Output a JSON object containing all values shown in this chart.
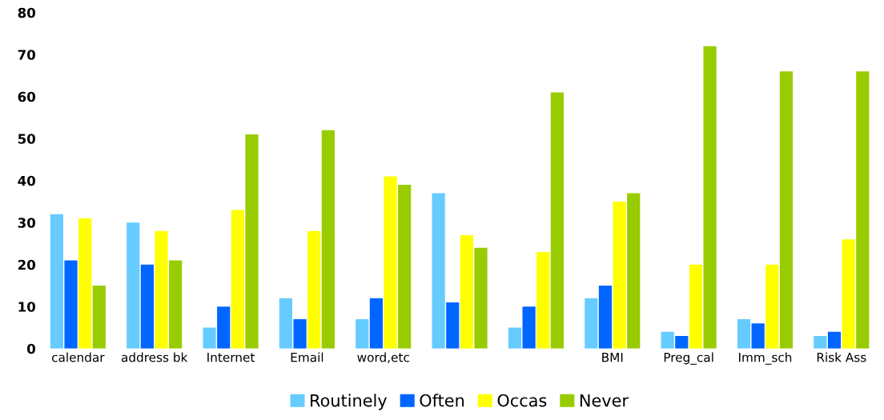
{
  "chart_data": {
    "type": "bar",
    "categories": [
      "calendar",
      "address bk",
      "Internet",
      "Email",
      "word,etc",
      null,
      null,
      "BMI",
      "Preg_cal",
      "Imm_sch",
      "Risk Ass"
    ],
    "series": [
      {
        "name": "Routinely",
        "color": "#66ccff",
        "values": [
          32,
          30,
          5,
          12,
          7,
          37,
          5,
          12,
          4,
          7,
          3
        ]
      },
      {
        "name": "Often",
        "color": "#0066ff",
        "values": [
          21,
          20,
          10,
          7,
          12,
          11,
          10,
          15,
          3,
          6,
          4
        ]
      },
      {
        "name": "Occas",
        "color": "#ffff00",
        "values": [
          31,
          28,
          33,
          28,
          41,
          27,
          23,
          35,
          20,
          20,
          26
        ]
      },
      {
        "name": "Never",
        "color": "#99cc00",
        "values": [
          15,
          21,
          51,
          52,
          39,
          24,
          61,
          37,
          72,
          66,
          66
        ]
      }
    ],
    "ylim": [
      0,
      80
    ],
    "yticks": [
      0,
      10,
      20,
      30,
      40,
      50,
      60,
      70,
      80
    ],
    "grid": false,
    "legend": "bottom"
  }
}
